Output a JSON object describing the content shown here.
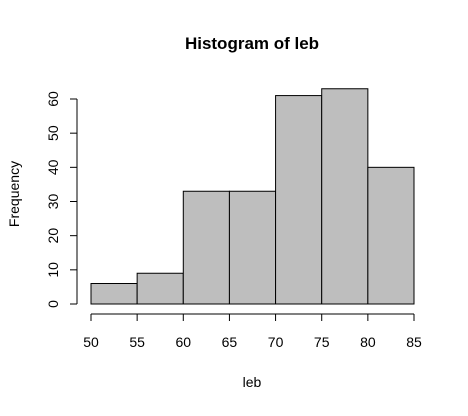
{
  "chart_data": {
    "type": "bar",
    "title": "Histogram of leb",
    "xlabel": "leb",
    "ylabel": "Frequency",
    "bins": [
      {
        "start": 50,
        "end": 55,
        "count": 6
      },
      {
        "start": 55,
        "end": 60,
        "count": 9
      },
      {
        "start": 60,
        "end": 65,
        "count": 33
      },
      {
        "start": 65,
        "end": 70,
        "count": 33
      },
      {
        "start": 70,
        "end": 75,
        "count": 61
      },
      {
        "start": 75,
        "end": 80,
        "count": 63
      },
      {
        "start": 80,
        "end": 85,
        "count": 40
      }
    ],
    "xlim": [
      50,
      85
    ],
    "ylim": [
      0,
      63
    ],
    "x_ticks": [
      50,
      55,
      60,
      65,
      70,
      75,
      80,
      85
    ],
    "y_ticks": [
      0,
      10,
      20,
      30,
      40,
      50,
      60
    ],
    "grid": false,
    "legend": "none",
    "bar_fill": "#bebebe",
    "bar_stroke": "#000000"
  }
}
